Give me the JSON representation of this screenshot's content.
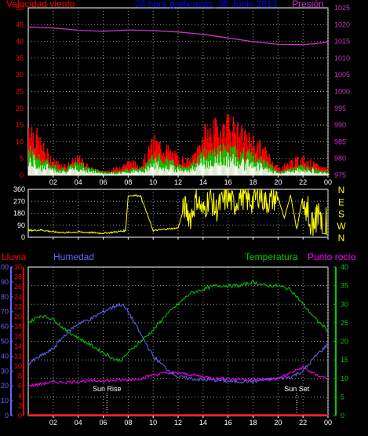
{
  "title": "24 hora graficadas, 30 Junio 2013",
  "colors": {
    "background": "#000000",
    "frame": "#ffffff",
    "wind_gust": "#ff0000",
    "wind_mean": "#00cc00",
    "wind_low": "#ffffff",
    "pressure": "#cc33cc",
    "direction": "#ffff00",
    "humidity": "#6666ff",
    "temperature": "#00cc00",
    "dewpoint": "#ff00ff",
    "rain": "#ff0000",
    "title": "#0000ff"
  },
  "chart_data": [
    {
      "type": "line",
      "panel": "wind-pressure",
      "title": "24 hora graficadas, 30 Junio 2013",
      "left_label": "Velocidad viento",
      "right_label": "Presión",
      "x_ticks": [
        "02",
        "04",
        "06",
        "08",
        "10",
        "12",
        "14",
        "16",
        "18",
        "20",
        "22",
        "00"
      ],
      "y_left_ticks": [
        "0",
        "5",
        "10",
        "15",
        "20",
        "25",
        "30",
        "35",
        "40",
        "45",
        "50"
      ],
      "y_left_range": [
        0,
        50
      ],
      "y_right_ticks": [
        "975",
        "980",
        "985",
        "990",
        "995",
        "1000",
        "1005",
        "1010",
        "1015",
        "1020",
        "1025"
      ],
      "y_right_range": [
        975,
        1025
      ],
      "series": [
        {
          "role": "pressure",
          "axis": "right",
          "x": [
            0,
            2,
            4,
            6,
            8,
            10,
            12,
            14,
            16,
            18,
            20,
            22,
            24
          ],
          "values": [
            1019.3,
            1019.0,
            1018.3,
            1018.0,
            1018.4,
            1018.2,
            1017.8,
            1017.1,
            1016.0,
            1014.9,
            1014.1,
            1014.0,
            1014.7
          ]
        },
        {
          "role": "gust",
          "axis": "left",
          "x": [
            0,
            1,
            2,
            3,
            4,
            5,
            6,
            7,
            8,
            9,
            10,
            11,
            12,
            13,
            14,
            15,
            16,
            17,
            18,
            19,
            20,
            21,
            22,
            23,
            24
          ],
          "values": [
            16,
            9,
            4,
            3,
            5,
            2,
            1,
            2,
            4,
            3,
            10,
            8,
            5,
            4,
            12,
            14,
            16,
            12,
            10,
            7,
            2,
            4,
            5,
            3,
            2
          ]
        },
        {
          "role": "mean",
          "axis": "left",
          "x": [
            0,
            1,
            2,
            3,
            4,
            5,
            6,
            7,
            8,
            9,
            10,
            11,
            12,
            13,
            14,
            15,
            16,
            17,
            18,
            19,
            20,
            21,
            22,
            23,
            24
          ],
          "values": [
            8,
            5,
            3,
            2,
            4,
            2,
            1,
            1,
            2,
            2,
            6,
            5,
            3,
            3,
            7,
            8,
            8,
            7,
            6,
            4,
            1,
            2,
            3,
            2,
            1
          ]
        }
      ]
    },
    {
      "type": "line",
      "panel": "direction",
      "x_ticks": [
        "02",
        "04",
        "06",
        "08",
        "10",
        "12",
        "14",
        "16",
        "18",
        "20",
        "22",
        "00"
      ],
      "y_left_ticks": [
        "0",
        "90",
        "180",
        "270",
        "360"
      ],
      "y_range": [
        0,
        360
      ],
      "right_ticks": [
        "N",
        "W",
        "S",
        "E",
        "N"
      ],
      "series": [
        {
          "role": "direction",
          "x": [
            0,
            1,
            2,
            3,
            4,
            5,
            6,
            7,
            7.8,
            8,
            8.5,
            9,
            10,
            11,
            12,
            12.5,
            13,
            13.5,
            14,
            14.5,
            15,
            15.5,
            16,
            16.5,
            17,
            17.5,
            18,
            18.5,
            19,
            20,
            20.5,
            21,
            21.5,
            22,
            22.5,
            23,
            23.5,
            24
          ],
          "values": [
            50,
            55,
            40,
            35,
            40,
            35,
            30,
            40,
            50,
            310,
            315,
            310,
            50,
            60,
            70,
            230,
            150,
            300,
            180,
            310,
            200,
            260,
            300,
            240,
            320,
            280,
            270,
            330,
            260,
            300,
            140,
            320,
            60,
            320,
            80,
            300,
            30,
            20
          ]
        }
      ]
    },
    {
      "type": "line",
      "panel": "humidity-temperature",
      "left_label": "Lluvia",
      "left2_label": "Humedad",
      "right_label": "Temperatura",
      "right2_label": "Punto rocío",
      "x_ticks": [
        "02",
        "04",
        "06",
        "08",
        "10",
        "12",
        "14",
        "16",
        "18",
        "20",
        "22",
        "00"
      ],
      "humidity_ticks": [
        "0",
        "10",
        "20",
        "30",
        "40",
        "50",
        "60",
        "70",
        "80",
        "90",
        "100"
      ],
      "rain_ticks": [
        "0",
        "2",
        "4",
        "6",
        "8",
        "10",
        "12",
        "14",
        "16",
        "18",
        "20",
        "22",
        "24",
        "26",
        "28",
        "30"
      ],
      "temp_ticks": [
        "0",
        "5",
        "10",
        "15",
        "20",
        "25",
        "30",
        "35",
        "40"
      ],
      "humidity_range": [
        0,
        100
      ],
      "rain_range": [
        0,
        30
      ],
      "temp_range": [
        0,
        40
      ],
      "annotations": [
        {
          "text": "Sun Rise",
          "x": 6.3
        },
        {
          "text": "Sun Set",
          "x": 21.5
        }
      ],
      "series": [
        {
          "role": "temperature",
          "axis": "temp",
          "x": [
            0,
            1,
            2,
            3,
            4,
            5,
            6,
            7,
            7.5,
            8,
            9,
            10,
            11,
            12,
            13,
            14,
            15,
            16,
            17,
            18,
            19,
            20,
            21,
            22,
            23,
            24
          ],
          "values": [
            25,
            27,
            26,
            23,
            21,
            19,
            17,
            15,
            15,
            17,
            20,
            23,
            27,
            30,
            33,
            34,
            35,
            35,
            35,
            36,
            35,
            35,
            34,
            30,
            26,
            23
          ]
        },
        {
          "role": "humidity",
          "axis": "humidity",
          "x": [
            0,
            1,
            2,
            3,
            4,
            5,
            6,
            7,
            7.5,
            8,
            9,
            10,
            11,
            12,
            13,
            14,
            15,
            16,
            17,
            18,
            19,
            20,
            21,
            22,
            23,
            24
          ],
          "values": [
            35,
            40,
            45,
            55,
            62,
            65,
            70,
            74,
            75,
            70,
            55,
            40,
            32,
            26,
            25,
            24,
            24,
            23,
            23,
            23,
            24,
            25,
            26,
            30,
            40,
            48
          ]
        },
        {
          "role": "dewpoint",
          "axis": "temp",
          "x": [
            0,
            1,
            2,
            3,
            4,
            5,
            6,
            7,
            8,
            9,
            10,
            11,
            12,
            13,
            14,
            15,
            16,
            17,
            18,
            19,
            20,
            21,
            22,
            23,
            24
          ],
          "values": [
            8,
            8.5,
            9,
            9,
            9.2,
            9.3,
            9.4,
            9.5,
            9.6,
            10,
            11,
            11.5,
            11.5,
            11,
            10.5,
            10,
            10,
            9.8,
            9.7,
            9.8,
            10,
            11.5,
            13,
            11,
            10
          ]
        },
        {
          "role": "rain",
          "axis": "rain",
          "x": [
            0,
            24
          ],
          "values": [
            0,
            0
          ]
        }
      ]
    }
  ]
}
